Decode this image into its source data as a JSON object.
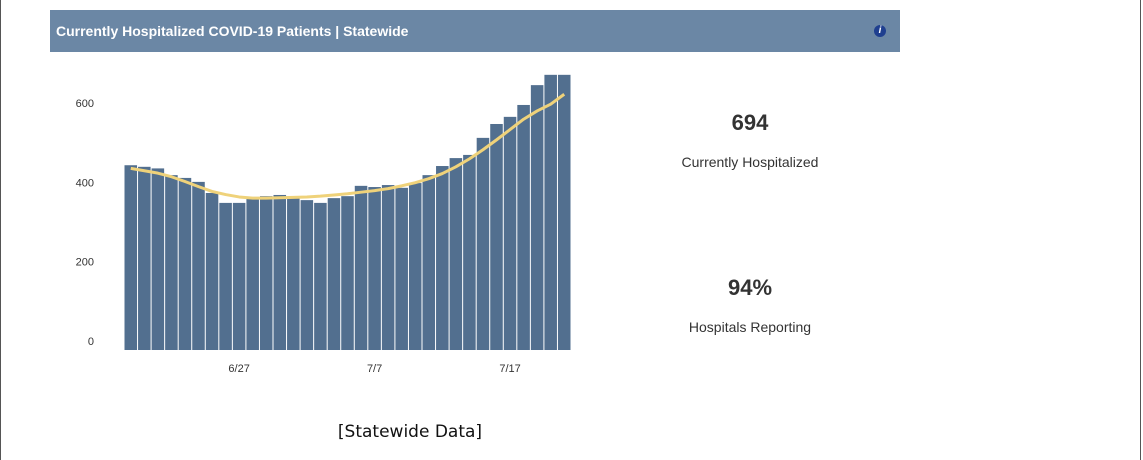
{
  "header": {
    "title": "Currently Hospitalized COVID-19 Patients | Statewide"
  },
  "chart_data": {
    "type": "bar",
    "categories": [
      null,
      null,
      null,
      null,
      null,
      null,
      null,
      null,
      "6/27",
      null,
      null,
      null,
      null,
      null,
      null,
      null,
      null,
      null,
      "7/7",
      null,
      null,
      null,
      null,
      null,
      null,
      null,
      null,
      null,
      "7/17",
      null,
      null,
      null,
      null
    ],
    "series": [
      {
        "type": "bar",
        "color": "#526f8f",
        "values": [
          466,
          462,
          458,
          441,
          434,
          424,
          396,
          371,
          371,
          386,
          388,
          391,
          386,
          378,
          371,
          383,
          388,
          414,
          411,
          416,
          409,
          421,
          441,
          464,
          484,
          492,
          535,
          570,
          588,
          618,
          668,
          694,
          694
        ]
      },
      {
        "type": "line",
        "color": "#efd27a",
        "values": [
          458,
          452,
          446,
          437,
          425,
          412,
          400,
          392,
          386,
          383,
          383,
          384,
          385,
          386,
          388,
          391,
          394,
          398,
          402,
          407,
          414,
          422,
          432,
          445,
          462,
          482,
          505,
          530,
          556,
          582,
          603,
          620,
          645
        ]
      }
    ],
    "ylim": [
      0,
      700
    ],
    "yticks": [
      0,
      200,
      400,
      600
    ]
  },
  "stats": [
    {
      "value": "694",
      "label": "Currently Hospitalized"
    },
    {
      "value": "94%",
      "label": "Hospitals Reporting"
    }
  ],
  "caption": "[Statewide Data]"
}
